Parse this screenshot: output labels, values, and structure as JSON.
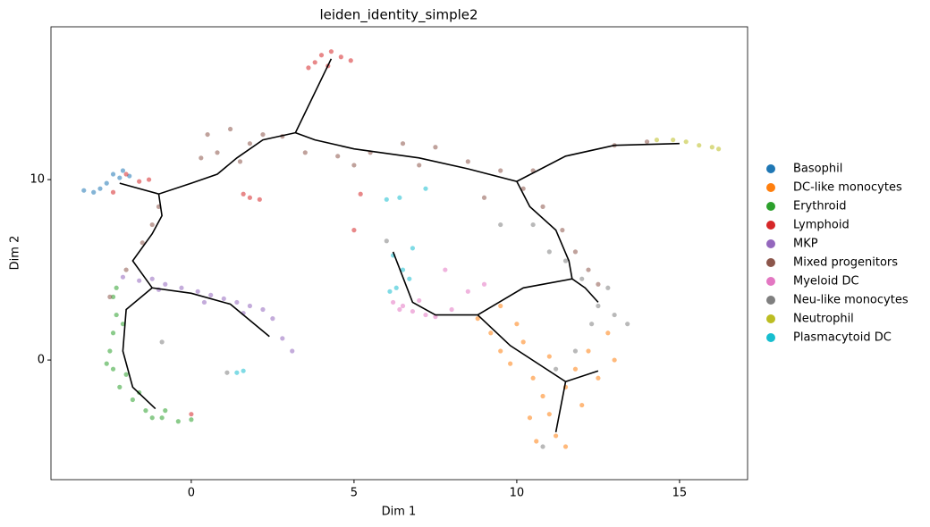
{
  "chart_data": {
    "type": "scatter",
    "title": "leiden_identity_simple2",
    "x_label": "Dim 1",
    "y_label": "Dim 2",
    "xlim": [
      -4.31,
      17.09
    ],
    "ylim": [
      -6.63,
      18.47
    ],
    "xticks": [
      0,
      5,
      10,
      15
    ],
    "yticks": [
      0,
      10
    ],
    "grid": false,
    "legend": "right",
    "series": [
      {
        "name": "Basophil",
        "color": "#1f77b4",
        "x": [
          -3.3,
          -3.0,
          -2.8,
          -2.4,
          -2.2,
          -1.9,
          -2.6,
          -2.1
        ],
        "y": [
          9.4,
          9.3,
          9.5,
          10.3,
          10.1,
          10.2,
          9.8,
          10.5
        ]
      },
      {
        "name": "DC-like monocytes",
        "color": "#ff7f0e",
        "x": [
          8.8,
          9.2,
          9.5,
          9.8,
          10.2,
          10.5,
          10.8,
          11.0,
          11.2,
          10.6,
          11.5,
          11.8,
          12.2,
          12.5,
          12.8,
          13.0,
          11.0,
          10.0,
          11.5,
          12.0,
          10.4,
          9.5
        ],
        "y": [
          2.3,
          1.5,
          0.5,
          -0.2,
          1.0,
          -1.0,
          -2.0,
          -3.0,
          -4.2,
          -4.5,
          -1.5,
          -0.5,
          0.5,
          -1.0,
          1.5,
          0.0,
          0.2,
          2.0,
          -4.8,
          -2.5,
          -3.2,
          3.0
        ]
      },
      {
        "name": "Erythroid",
        "color": "#2ca02c",
        "x": [
          -2.4,
          -2.3,
          -2.4,
          -2.5,
          -2.4,
          -2.2,
          -1.8,
          -1.4,
          -0.9,
          -0.4,
          0.0,
          -2.0,
          -1.6,
          -2.6,
          -0.8,
          -1.2,
          -2.1,
          -2.3
        ],
        "y": [
          3.5,
          2.5,
          1.5,
          0.5,
          -0.5,
          -1.5,
          -2.2,
          -2.8,
          -3.2,
          -3.4,
          -3.3,
          -0.8,
          -1.8,
          -0.2,
          -2.8,
          -3.2,
          2.0,
          4.0
        ]
      },
      {
        "name": "Lymphoid",
        "color": "#d62728",
        "x": [
          3.8,
          4.0,
          4.3,
          4.6,
          4.9,
          4.2,
          3.6,
          -2.0,
          -1.6,
          -1.3,
          -2.4,
          1.8,
          2.1,
          1.6,
          5.2,
          5.0,
          0.0
        ],
        "y": [
          16.5,
          16.9,
          17.1,
          16.8,
          16.6,
          16.3,
          16.2,
          10.3,
          9.9,
          10.0,
          9.3,
          9.0,
          8.9,
          9.2,
          9.2,
          7.2,
          -3.0
        ]
      },
      {
        "name": "MKP",
        "color": "#9467bd",
        "x": [
          -2.1,
          -1.6,
          -1.2,
          -0.8,
          -0.3,
          0.2,
          0.6,
          1.0,
          1.4,
          1.8,
          2.2,
          2.5,
          2.8,
          3.1,
          -1.0,
          0.4,
          1.6
        ],
        "y": [
          4.6,
          4.4,
          4.5,
          4.2,
          4.0,
          3.8,
          3.6,
          3.4,
          3.2,
          3.0,
          2.8,
          2.3,
          1.2,
          0.5,
          3.9,
          3.2,
          2.6
        ]
      },
      {
        "name": "Mixed progenitors",
        "color": "#8c564b",
        "x": [
          0.5,
          0.8,
          1.2,
          1.8,
          2.2,
          1.5,
          0.3,
          -1.0,
          -1.2,
          -1.5,
          -2.0,
          3.5,
          4.5,
          5.5,
          6.5,
          7.5,
          8.5,
          9.5,
          10.2,
          10.8,
          11.4,
          11.8,
          12.2,
          12.5,
          13.0,
          14.0,
          9.0,
          10.5,
          -2.5,
          2.8,
          5.0,
          7.0
        ],
        "y": [
          12.5,
          11.5,
          12.8,
          12.0,
          12.5,
          11.0,
          11.2,
          8.5,
          7.5,
          6.5,
          5.0,
          11.5,
          11.3,
          11.5,
          12.0,
          11.8,
          11.0,
          10.5,
          9.5,
          8.5,
          7.2,
          6.0,
          5.0,
          4.2,
          11.9,
          12.1,
          9.0,
          10.5,
          3.5,
          12.4,
          10.8,
          10.8
        ]
      },
      {
        "name": "Myeloid DC",
        "color": "#e377c2",
        "x": [
          6.2,
          6.5,
          6.8,
          7.2,
          7.5,
          8.0,
          8.5,
          9.0,
          6.4,
          7.0,
          7.8
        ],
        "y": [
          3.2,
          3.0,
          2.7,
          2.5,
          2.4,
          2.8,
          3.8,
          4.2,
          2.8,
          3.3,
          5.0
        ]
      },
      {
        "name": "Neu-like monocytes",
        "color": "#7f7f7f",
        "x": [
          10.5,
          11.0,
          11.5,
          12.0,
          12.5,
          13.0,
          13.4,
          12.8,
          12.3,
          11.8,
          11.2,
          10.8,
          1.1,
          6.0,
          9.5,
          -0.9
        ],
        "y": [
          7.5,
          6.0,
          5.5,
          4.5,
          3.0,
          2.5,
          2.0,
          4.0,
          2.0,
          0.5,
          -0.5,
          -4.8,
          -0.7,
          6.6,
          7.5,
          1.0
        ]
      },
      {
        "name": "Neutrophil",
        "color": "#bcbd22",
        "x": [
          14.3,
          14.8,
          15.2,
          15.6,
          16.0,
          16.2
        ],
        "y": [
          12.2,
          12.2,
          12.1,
          11.9,
          11.8,
          11.7
        ]
      },
      {
        "name": "Plasmacytoid DC",
        "color": "#17becf",
        "x": [
          6.2,
          6.5,
          6.7,
          6.3,
          6.1,
          6.8,
          6.0,
          7.2,
          1.4,
          1.6,
          6.4
        ],
        "y": [
          5.8,
          5.0,
          4.5,
          4.0,
          3.8,
          6.2,
          8.9,
          9.5,
          -0.7,
          -0.6,
          9.0
        ]
      }
    ],
    "trajectory": {
      "color": "#000000",
      "x": [
        -2.2,
        -1.0,
        0,
        0.8,
        1.4,
        2.2,
        3.2,
        4.3,
        null,
        3.2,
        3.8,
        5,
        7,
        8.5,
        10,
        11.5,
        13,
        15,
        null,
        -1.0,
        -0.9,
        -1.2,
        -1.8,
        -1.2,
        0,
        1.2,
        2.4,
        null,
        -1.2,
        -2.0,
        -2.1,
        -1.8,
        -1.1,
        null,
        10,
        10.4,
        11.2,
        11.6,
        11.7,
        12.1,
        12.5,
        null,
        11.7,
        10.2,
        8.8,
        7.5,
        6.8,
        6.2,
        null,
        8.8,
        9.8,
        11.5,
        12.5,
        null,
        11.5,
        11.2
      ],
      "y": [
        9.8,
        9.2,
        9.8,
        10.3,
        11.2,
        12.2,
        12.6,
        16.7,
        null,
        12.6,
        12.2,
        11.7,
        11.2,
        10.6,
        9.9,
        11.3,
        11.9,
        12.0,
        null,
        9.2,
        8.0,
        7.0,
        5.5,
        4.0,
        3.7,
        3.1,
        1.3,
        null,
        4.0,
        2.8,
        0.5,
        -1.5,
        -2.7,
        null,
        9.9,
        8.5,
        7.2,
        5.5,
        4.5,
        4.0,
        3.2,
        null,
        4.5,
        4.0,
        2.5,
        2.5,
        3.2,
        6.0,
        null,
        2.5,
        0.8,
        -1.2,
        -0.6,
        null,
        -1.2,
        -4.0
      ]
    }
  }
}
